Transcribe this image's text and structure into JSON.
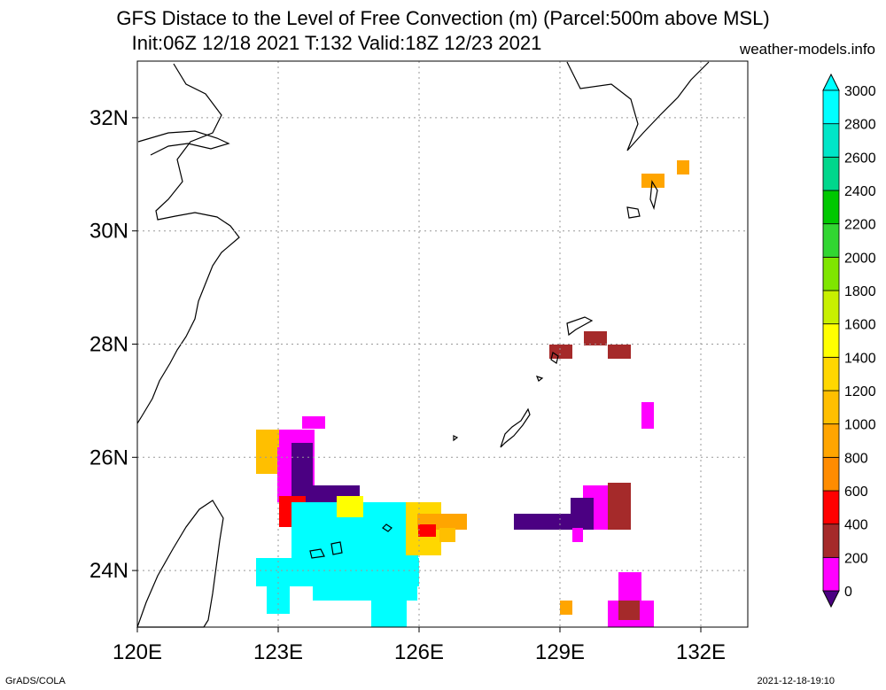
{
  "title": {
    "line1": "GFS Distace to the Level of Free Convection (m) (Parcel:500m above MSL)",
    "line2": "Init:06Z 12/18 2021 T:132 Valid:18Z 12/23 2021"
  },
  "site": "weather-models.info",
  "footer": {
    "left": "GrADS/COLA",
    "right": "2021-12-18-19:10"
  },
  "map": {
    "lon_range": [
      120,
      133
    ],
    "lat_range": [
      23,
      33
    ],
    "lon_ticks": [
      {
        "value": 120,
        "label": "120E"
      },
      {
        "value": 123,
        "label": "123E"
      },
      {
        "value": 126,
        "label": "126E"
      },
      {
        "value": 129,
        "label": "129E"
      },
      {
        "value": 132,
        "label": "132E"
      }
    ],
    "lat_ticks": [
      {
        "value": 24,
        "label": "24N"
      },
      {
        "value": 26,
        "label": "26N"
      },
      {
        "value": 28,
        "label": "28N"
      },
      {
        "value": 30,
        "label": "30N"
      },
      {
        "value": 32,
        "label": "32N"
      }
    ]
  },
  "colorbar": {
    "levels": [
      {
        "label": "0",
        "color": "#4b0082"
      },
      {
        "label": "200",
        "color": "#ff00ff"
      },
      {
        "label": "400",
        "color": "#a52a2a"
      },
      {
        "label": "600",
        "color": "#ff0000"
      },
      {
        "label": "800",
        "color": "#ff8c00"
      },
      {
        "label": "1000",
        "color": "#ffa500"
      },
      {
        "label": "1200",
        "color": "#ffbf00"
      },
      {
        "label": "1400",
        "color": "#ffd700"
      },
      {
        "label": "1600",
        "color": "#ffff00"
      },
      {
        "label": "1800",
        "color": "#c8f000"
      },
      {
        "label": "2000",
        "color": "#7fe600"
      },
      {
        "label": "2200",
        "color": "#32d632"
      },
      {
        "label": "2400",
        "color": "#00c800"
      },
      {
        "label": "2600",
        "color": "#00d78c"
      },
      {
        "label": "2800",
        "color": "#00e6c8"
      },
      {
        "label": "3000",
        "color": "#00ffff"
      }
    ],
    "under_color": "#4b0082",
    "over_color": "#00ffff"
  }
}
